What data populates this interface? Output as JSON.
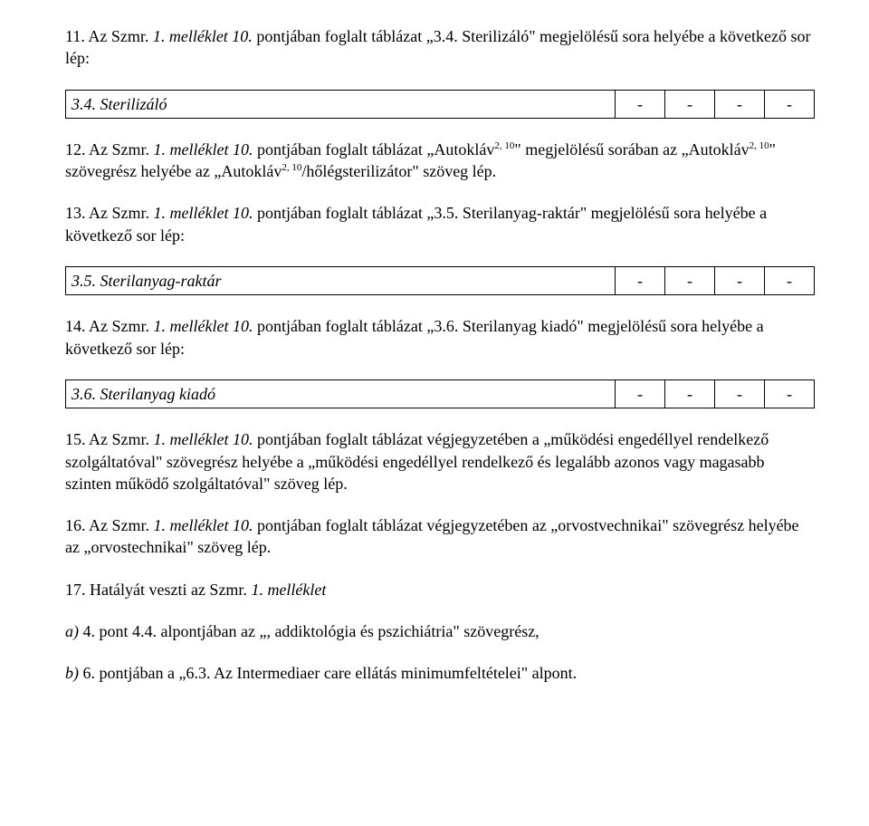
{
  "p11": {
    "prefix": "11. Az Szmr. ",
    "ital": "1. melléklet 10.",
    "rest": " pontjában foglalt táblázat „3.4. Sterilizáló\" megjelölésű sora helyébe a következő sor lép:"
  },
  "t34": {
    "label": "3.4. Sterilizáló",
    "c1": "-",
    "c2": "-",
    "c3": "-",
    "c4": "-"
  },
  "p12": {
    "prefix": "12. Az Szmr. ",
    "ital": "1. melléklet 10.",
    "mid1": " pontjában foglalt táblázat „Autokláv",
    "sup1": "2, 10",
    "mid2": "\" megjelölésű sorában az „Autokláv",
    "sup2": "2, 10",
    "mid3": "\" szövegrész helyébe az „Autokláv",
    "sup3": "2, 10",
    "rest": "/hőlégsterilizátor\" szöveg lép."
  },
  "p13": {
    "prefix": "13. Az Szmr. ",
    "ital": "1. melléklet 10.",
    "rest": " pontjában foglalt táblázat „3.5. Sterilanyag-raktár\" megjelölésű sora helyébe a következő sor lép:"
  },
  "t35": {
    "label": "3.5. Sterilanyag-raktár",
    "c1": "-",
    "c2": "-",
    "c3": "-",
    "c4": "-"
  },
  "p14": {
    "prefix": "14. Az Szmr. ",
    "ital": "1. melléklet 10.",
    "rest": " pontjában foglalt táblázat „3.6. Sterilanyag kiadó\" megjelölésű sora helyébe a következő sor lép:"
  },
  "t36": {
    "label": "3.6. Sterilanyag kiadó",
    "c1": "-",
    "c2": "-",
    "c3": "-",
    "c4": "-"
  },
  "p15": {
    "prefix": "15. Az Szmr. ",
    "ital": "1. melléklet 10.",
    "rest": " pontjában foglalt táblázat végjegyzetében a „működési engedéllyel rendelkező szolgáltatóval\" szövegrész helyébe a „működési engedéllyel rendelkező és legalább azonos vagy magasabb szinten működő szolgáltatóval\" szöveg lép."
  },
  "p16": {
    "prefix": "16. Az Szmr. ",
    "ital": "1. melléklet 10.",
    "rest": " pontjában foglalt táblázat végjegyzetében az „orvostvechnikai\" szövegrész helyébe az „orvostechnikai\" szöveg lép."
  },
  "p17": {
    "prefix": "17. Hatályát veszti az Szmr. ",
    "ital": "1. melléklet"
  },
  "pa": {
    "ital": "a)",
    "rest": " 4. pont 4.4. alpontjában az „, addiktológia és pszichiátria\" szövegrész,"
  },
  "pb": {
    "ital": "b)",
    "rest": " 6. pontjában a „6.3. Az Intermediaer care ellátás minimumfeltételei\" alpont."
  }
}
